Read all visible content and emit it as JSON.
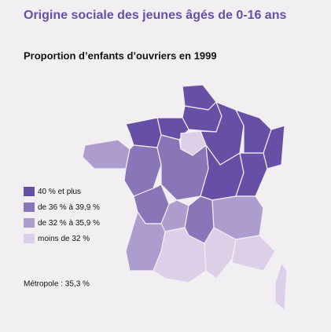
{
  "header": {
    "title": "Origine sociale des jeunes âgés de 0-16 ans",
    "subtitle": "Proportion d’enfants d’ouvriers en 1999"
  },
  "legend": [
    {
      "name": "40 % et plus",
      "color": "#6650a6"
    },
    {
      "name": "de 36 % à 39,9 %",
      "color": "#8876b8"
    },
    {
      "name": "de 32 % à 35,9 %",
      "color": "#ad9cce"
    },
    {
      "name": "moins de 32 %",
      "color": "#dccfe8"
    }
  ],
  "note": "Métropole : 35,3 %"
}
